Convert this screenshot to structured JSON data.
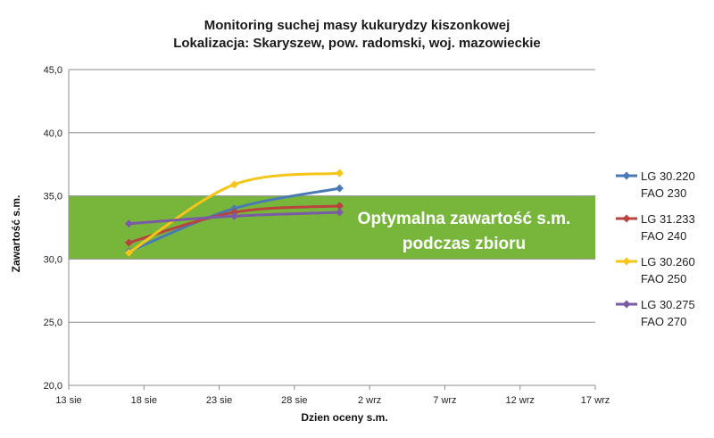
{
  "chart_data": {
    "type": "line",
    "title_lines": [
      "Monitoring suchej masy kukurydzy kiszonkowej",
      "Lokalizacja: Skaryszew, pow. radomski, woj. mazowieckie"
    ],
    "xlabel": "Dzien oceny s.m.",
    "ylabel": "Zawartość s.m.",
    "x_ticks": [
      "13 sie",
      "18 sie",
      "23 sie",
      "28 sie",
      "2 wrz",
      "7 wrz",
      "12 wrz",
      "17 wrz"
    ],
    "xlim": [
      "2013-08-13",
      "2013-09-17"
    ],
    "x_tick_step_days": 5,
    "ylim": [
      20.0,
      45.0
    ],
    "y_ticks": [
      "20,0",
      "25,0",
      "30,0",
      "35,0",
      "40,0",
      "45,0"
    ],
    "grid": "horizontal",
    "legend_position": "right",
    "optimal_band": {
      "range": [
        30.0,
        35.0
      ],
      "color": "#77b63b",
      "label_lines": [
        "Optymalna zawartość s.m.",
        "podczas zbioru"
      ]
    },
    "series": [
      {
        "name_lines": [
          "LG 30.220",
          "FAO 230"
        ],
        "color": "#4a7ab5",
        "points": [
          {
            "x": "2013-08-17",
            "y": 30.6
          },
          {
            "x": "2013-08-24",
            "y": 34.0
          },
          {
            "x": "2013-08-31",
            "y": 35.6
          }
        ]
      },
      {
        "name_lines": [
          "LG 31.233",
          "FAO 240"
        ],
        "color": "#b9433e",
        "points": [
          {
            "x": "2013-08-17",
            "y": 31.3
          },
          {
            "x": "2013-08-24",
            "y": 33.7
          },
          {
            "x": "2013-08-31",
            "y": 34.2
          }
        ]
      },
      {
        "name_lines": [
          "LG 30.260",
          "FAO 250"
        ],
        "color": "#f5c518",
        "points": [
          {
            "x": "2013-08-17",
            "y": 30.5
          },
          {
            "x": "2013-08-24",
            "y": 35.9
          },
          {
            "x": "2013-08-31",
            "y": 36.8
          }
        ]
      },
      {
        "name_lines": [
          "LG 30.275",
          "FAO 270"
        ],
        "color": "#7b5aa6",
        "points": [
          {
            "x": "2013-08-17",
            "y": 32.8
          },
          {
            "x": "2013-08-24",
            "y": 33.4
          },
          {
            "x": "2013-08-31",
            "y": 33.7
          }
        ]
      }
    ]
  }
}
